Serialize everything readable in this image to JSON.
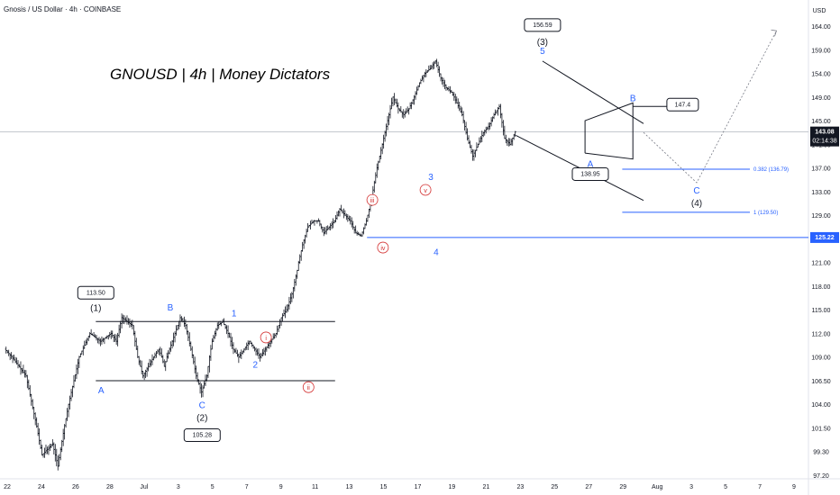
{
  "header": {
    "symbol_line": "Gnosis / US Dollar · 4h · COINBASE",
    "currency": "USD"
  },
  "brand_text": "GNOUSD | 4h | Money Dictators",
  "chart_data": {
    "type": "candlestick",
    "title": "Gnosis / US Dollar · 4h · COINBASE",
    "y_unit": "USD",
    "y_ticks": [
      "164.00",
      "159.00",
      "154.00",
      "149.00",
      "145.00",
      "141.00",
      "137.00",
      "133.00",
      "129.00",
      "125.00",
      "121.00",
      "118.00",
      "115.00",
      "112.00",
      "109.00",
      "106.50",
      "104.00",
      "101.50",
      "99.30",
      "97.20"
    ],
    "x_ticks": [
      "22",
      "24",
      "26",
      "28",
      "Jul",
      "3",
      "5",
      "7",
      "9",
      "11",
      "13",
      "15",
      "17",
      "19",
      "21",
      "23",
      "25",
      "27",
      "29",
      "Aug",
      "3",
      "5",
      "7",
      "9"
    ],
    "current_price": "143.08",
    "countdown": "02:14:38",
    "support_level": "125.22",
    "price_path": [
      [
        0,
        110
      ],
      [
        4,
        107
      ],
      [
        7,
        99
      ],
      [
        9,
        100
      ],
      [
        10,
        98
      ],
      [
        12,
        104
      ],
      [
        14,
        109
      ],
      [
        16,
        112
      ],
      [
        18,
        111
      ],
      [
        20,
        112
      ],
      [
        21,
        111
      ],
      [
        22,
        114
      ],
      [
        24,
        113
      ],
      [
        25,
        109
      ],
      [
        26,
        107
      ],
      [
        27,
        108
      ],
      [
        28,
        109
      ],
      [
        29,
        110
      ],
      [
        30,
        108
      ],
      [
        31,
        110
      ],
      [
        32,
        112
      ],
      [
        33,
        114
      ],
      [
        34,
        113
      ],
      [
        35,
        110
      ],
      [
        36,
        107
      ],
      [
        37,
        105.3
      ],
      [
        38,
        107
      ],
      [
        39,
        111
      ],
      [
        40,
        113
      ],
      [
        41,
        113.5
      ],
      [
        42,
        112
      ],
      [
        43,
        110
      ],
      [
        44,
        109
      ],
      [
        45,
        110
      ],
      [
        46,
        111
      ],
      [
        47,
        110
      ],
      [
        48,
        109
      ],
      [
        49,
        110
      ],
      [
        50,
        111
      ],
      [
        51,
        112
      ],
      [
        52,
        114
      ],
      [
        53,
        115
      ],
      [
        54,
        117
      ],
      [
        55,
        120
      ],
      [
        56,
        124
      ],
      [
        57,
        127
      ],
      [
        58,
        128
      ],
      [
        59,
        128
      ],
      [
        60,
        126
      ],
      [
        61,
        127
      ],
      [
        62,
        128
      ],
      [
        63,
        130
      ],
      [
        64,
        129
      ],
      [
        65,
        128
      ],
      [
        66,
        126
      ],
      [
        67,
        125.5
      ],
      [
        68,
        128
      ],
      [
        69,
        132
      ],
      [
        70,
        137
      ],
      [
        71,
        141
      ],
      [
        72,
        145
      ],
      [
        73,
        149
      ],
      [
        74,
        147
      ],
      [
        75,
        146
      ],
      [
        76,
        147
      ],
      [
        77,
        149
      ],
      [
        78,
        152
      ],
      [
        79,
        154
      ],
      [
        80,
        155
      ],
      [
        81,
        156.6
      ],
      [
        82,
        153
      ],
      [
        83,
        151
      ],
      [
        84,
        150
      ],
      [
        85,
        148
      ],
      [
        86,
        146
      ],
      [
        87,
        142
      ],
      [
        88,
        139
      ],
      [
        89,
        141
      ],
      [
        90,
        143
      ],
      [
        91,
        144
      ],
      [
        92,
        146
      ],
      [
        93,
        147.4
      ],
      [
        94,
        142
      ],
      [
        95,
        141
      ],
      [
        96,
        143.08
      ]
    ],
    "wave_labels": [
      {
        "text": "(1)",
        "x": 17,
        "y": 113.5
      },
      {
        "text": "113.50",
        "x": 17,
        "y": 113.5
      },
      {
        "text": "A",
        "x": 18,
        "y": 106.5
      },
      {
        "text": "B",
        "x": 31,
        "y": 114
      },
      {
        "text": "C",
        "x": 37,
        "y": 105.3
      },
      {
        "text": "(2)",
        "x": 37,
        "y": 105.3
      },
      {
        "text": "105.28",
        "x": 37,
        "y": 105.3
      },
      {
        "text": "1",
        "x": 43,
        "y": 113.5
      },
      {
        "text": "2",
        "x": 47,
        "y": 109
      },
      {
        "text": "i",
        "x": 49,
        "y": 110
      },
      {
        "text": "ii",
        "x": 57,
        "y": 108
      },
      {
        "text": "iii",
        "x": 69,
        "y": 129
      },
      {
        "text": "iv",
        "x": 71,
        "y": 125.5
      },
      {
        "text": "v",
        "x": 79,
        "y": 131
      },
      {
        "text": "3",
        "x": 80,
        "y": 131
      },
      {
        "text": "4",
        "x": 81,
        "y": 125
      },
      {
        "text": "5",
        "x": 101,
        "y": 156.6
      },
      {
        "text": "(3)",
        "x": 101,
        "y": 156.6
      },
      {
        "text": "156.59",
        "x": 101,
        "y": 156.6
      },
      {
        "text": "A",
        "x": 110,
        "y": 139
      },
      {
        "text": "138.95",
        "x": 110,
        "y": 139
      },
      {
        "text": "B",
        "x": 118,
        "y": 147.4
      },
      {
        "text": "147.4",
        "x": 118,
        "y": 147.4
      },
      {
        "text": "C",
        "x": 130,
        "y": 134.5
      },
      {
        "text": "(4)",
        "x": 130,
        "y": 134.5
      }
    ],
    "fib_levels": [
      {
        "label": "0.382 (136.79)",
        "value": 136.79
      },
      {
        "label": "1 (129.50)",
        "value": 129.5
      }
    ],
    "projection": [
      [
        120,
        143
      ],
      [
        130,
        134.5
      ],
      [
        145,
        163
      ]
    ]
  }
}
